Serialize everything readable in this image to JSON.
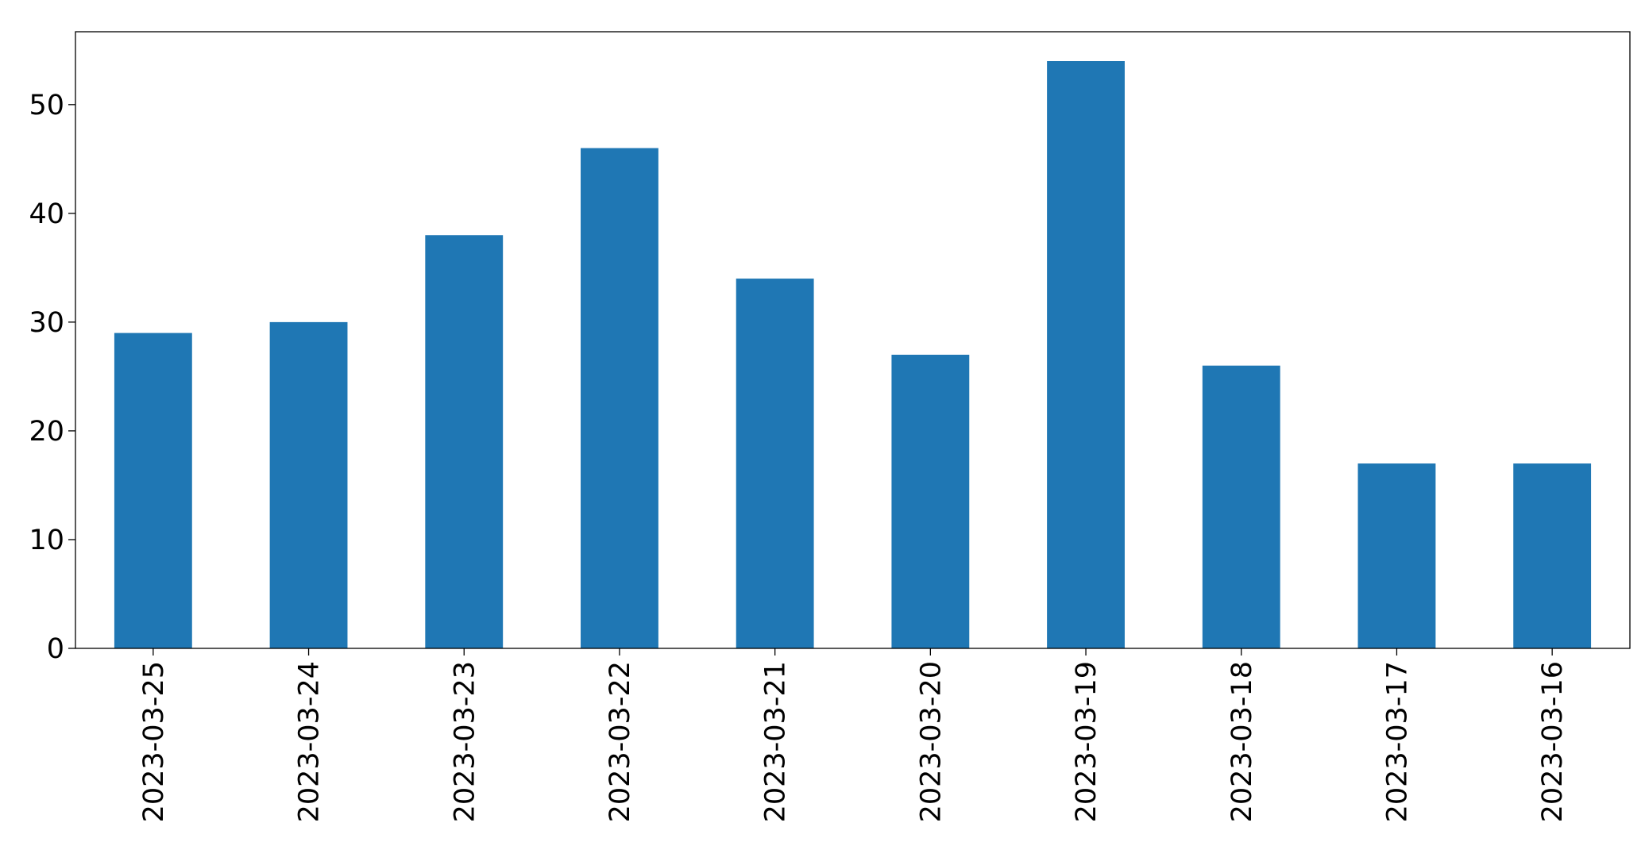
{
  "chart_data": {
    "type": "bar",
    "categories": [
      "2023-03-25",
      "2023-03-24",
      "2023-03-23",
      "2023-03-22",
      "2023-03-21",
      "2023-03-20",
      "2023-03-19",
      "2023-03-18",
      "2023-03-17",
      "2023-03-16"
    ],
    "values": [
      29,
      30,
      38,
      46,
      34,
      27,
      54,
      26,
      17,
      17
    ],
    "color": "#1f77b4",
    "ylim": [
      0,
      56.7
    ],
    "yticks": [
      0,
      10,
      20,
      30,
      40,
      50
    ],
    "grid": false
  }
}
